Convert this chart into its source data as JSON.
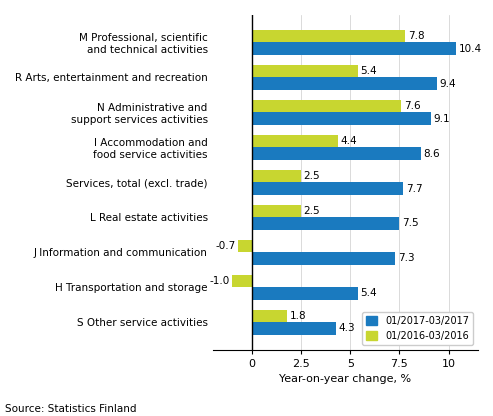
{
  "categories": [
    "M Professional, scientific\nand technical activities",
    "R Arts, entertainment and recreation",
    "N Administrative and\nsupport services activities",
    "I Accommodation and\nfood service activities",
    "Services, total (excl. trade)",
    "L Real estate activities",
    "J Information and communication",
    "H Transportation and storage",
    "S Other service activities"
  ],
  "values_2017": [
    10.4,
    9.4,
    9.1,
    8.6,
    7.7,
    7.5,
    7.3,
    5.4,
    4.3
  ],
  "values_2016": [
    7.8,
    5.4,
    7.6,
    4.4,
    2.5,
    2.5,
    -0.7,
    -1.0,
    1.8
  ],
  "color_2017": "#1a7abf",
  "color_2016": "#c8d630",
  "xlabel": "Year-on-year change, %",
  "legend_2017": "01/2017-03/2017",
  "legend_2016": "01/2016-03/2016",
  "source": "Source: Statistics Finland",
  "xlim": [
    -2.0,
    11.5
  ],
  "xticks": [
    0.0,
    2.5,
    5.0,
    7.5,
    10.0
  ],
  "bar_height": 0.35,
  "label_fontsize": 7.5,
  "tick_fontsize": 8.0,
  "source_fontsize": 7.5
}
